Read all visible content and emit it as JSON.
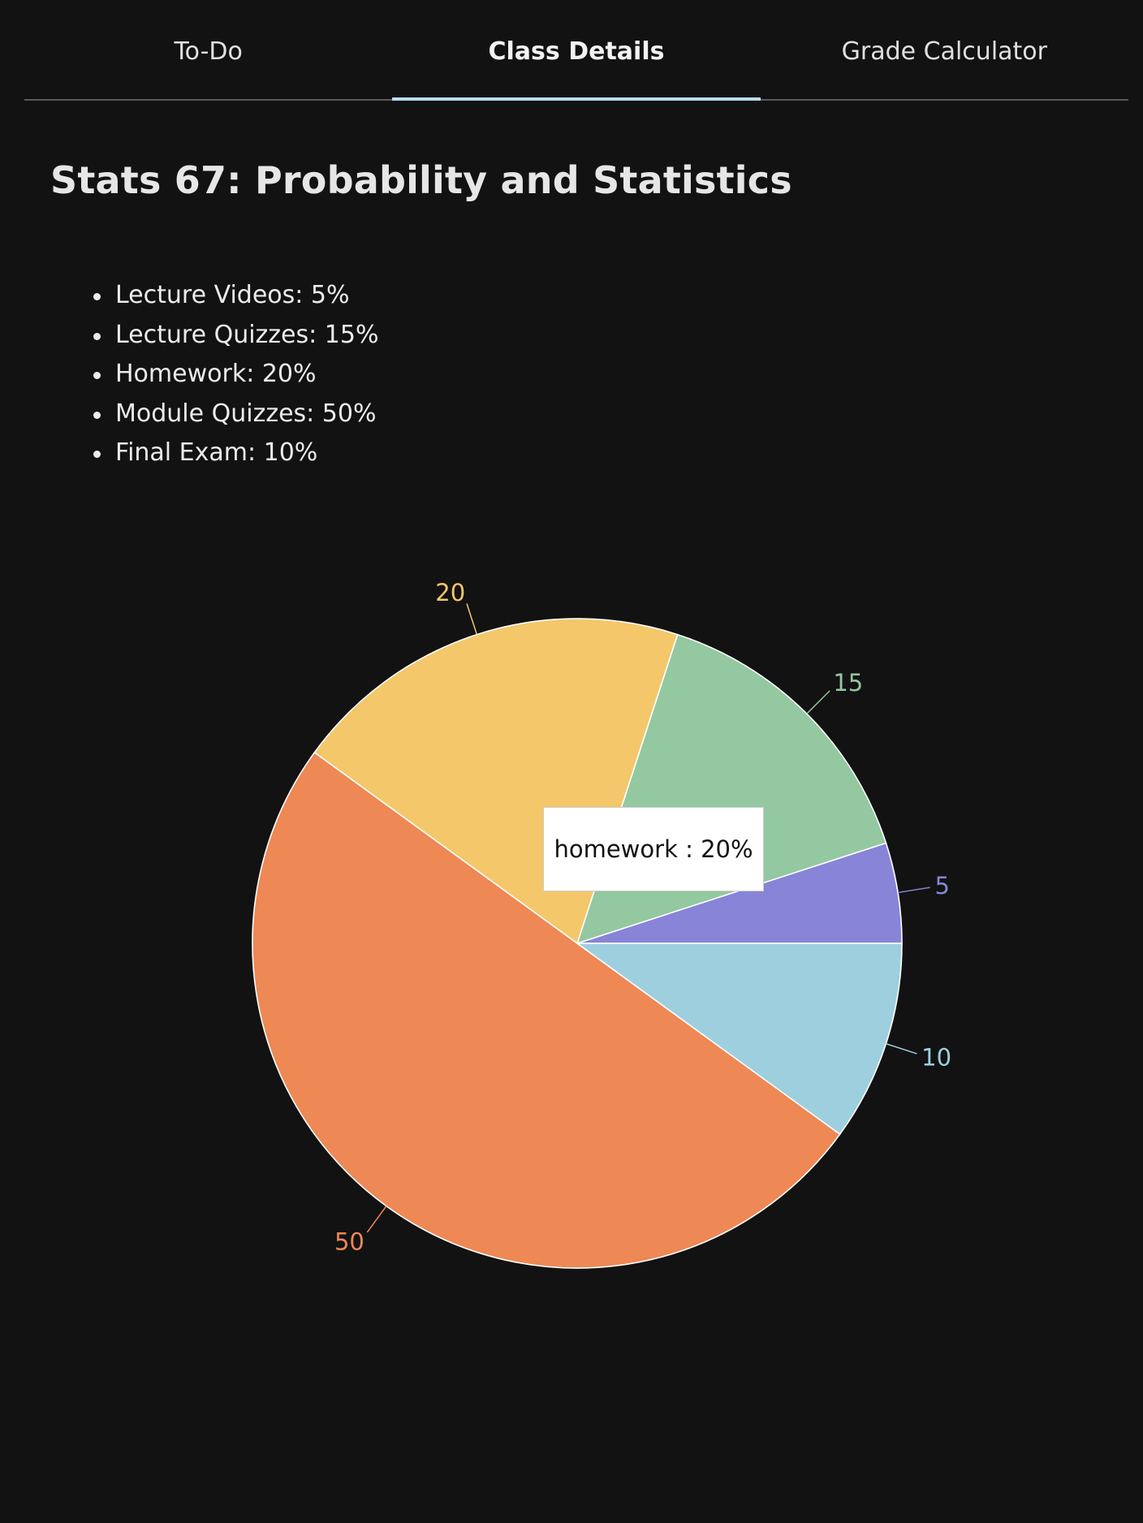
{
  "tabs": [
    {
      "label": "To-Do",
      "active": false
    },
    {
      "label": "Class Details",
      "active": true
    },
    {
      "label": "Grade Calculator",
      "active": false
    }
  ],
  "page": {
    "title": "Stats 67: Probability and Statistics"
  },
  "grade_weights": [
    "Lecture Videos: 5%",
    "Lecture Quizzes: 15%",
    "Homework: 20%",
    "Module Quizzes: 50%",
    "Final Exam: 10%"
  ],
  "tooltip": {
    "text": "homework : 20%"
  },
  "colors": {
    "background": "#121212",
    "tab_indicator": "#b8dcef"
  },
  "chart_data": {
    "type": "pie",
    "start_angle_deg": 0,
    "direction": "counterclockwise",
    "slices": [
      {
        "key": "lecture-videos",
        "value": 5,
        "color": "#8884d8"
      },
      {
        "key": "lecture-quizzes",
        "value": 15,
        "color": "#93c8a0"
      },
      {
        "key": "homework",
        "value": 20,
        "color": "#f4c76a"
      },
      {
        "key": "module-quizzes",
        "value": 50,
        "color": "#ee8855"
      },
      {
        "key": "final-exam",
        "value": 10,
        "color": "#9ecfdf"
      }
    ],
    "data_labels": [
      "5",
      "15",
      "20",
      "50",
      "10"
    ]
  }
}
